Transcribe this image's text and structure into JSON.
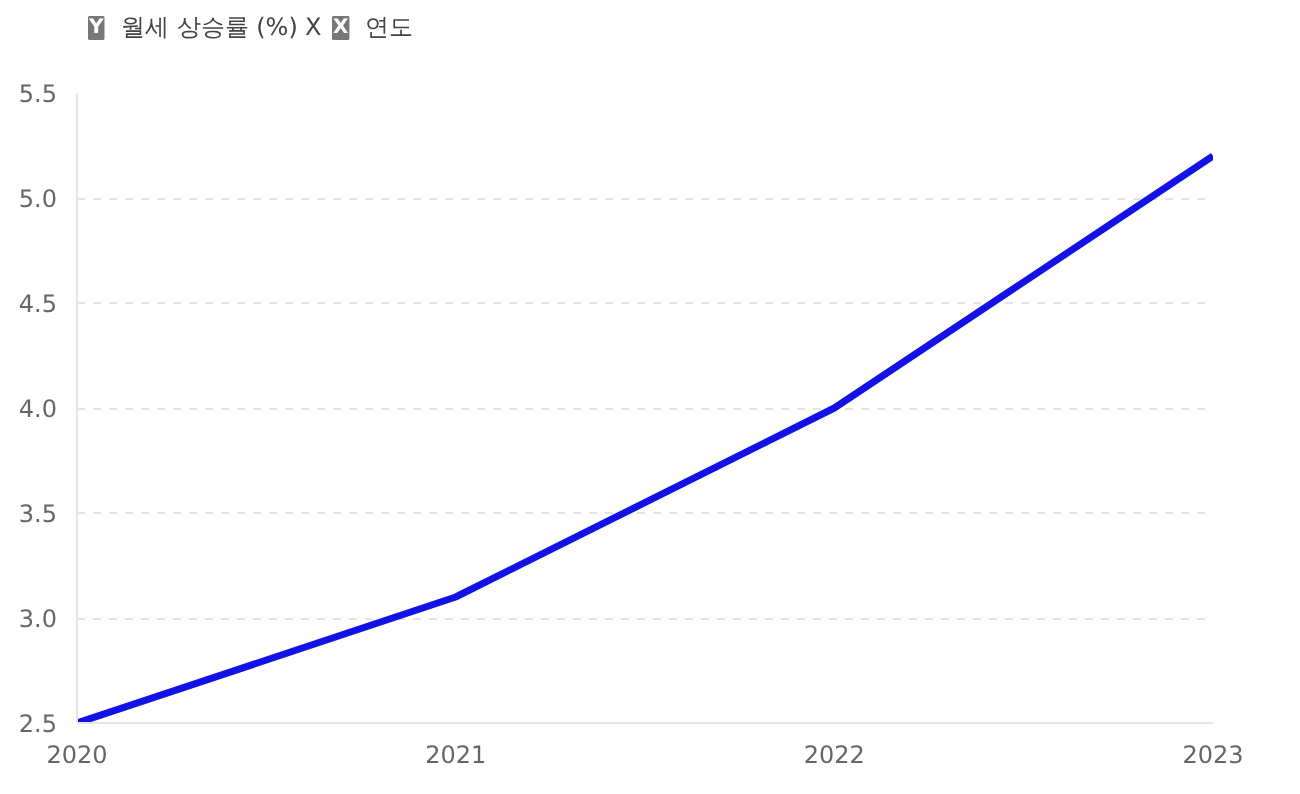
{
  "chart_data": {
    "type": "line",
    "xlabel": "연도",
    "ylabel": "월세 상승률 (%)",
    "annotations": [
      "Y",
      "X",
      "X"
    ],
    "x": [
      2020,
      2021,
      2022,
      2023
    ],
    "series": [
      {
        "color": "#1212e6",
        "values": [
          2.5,
          3.1,
          4.0,
          5.2
        ]
      }
    ],
    "xlim": [
      2020,
      2023
    ],
    "xticks": [
      2020,
      2021,
      2022,
      2023
    ],
    "ylim": [
      2.5,
      5.5
    ],
    "yticks": [
      {
        "value": 2.5,
        "label": "2.5"
      },
      {
        "value": 3.0,
        "label": "3.0"
      },
      {
        "value": 3.5,
        "label": "3.5"
      },
      {
        "value": 4.0,
        "label": "4.0"
      },
      {
        "value": 4.5,
        "label": "4.5"
      },
      {
        "value": 5.0,
        "label": "5.0"
      },
      {
        "value": 5.5,
        "label": "5.5"
      }
    ],
    "grid": "y",
    "marker": "none",
    "line_style": "solid"
  }
}
